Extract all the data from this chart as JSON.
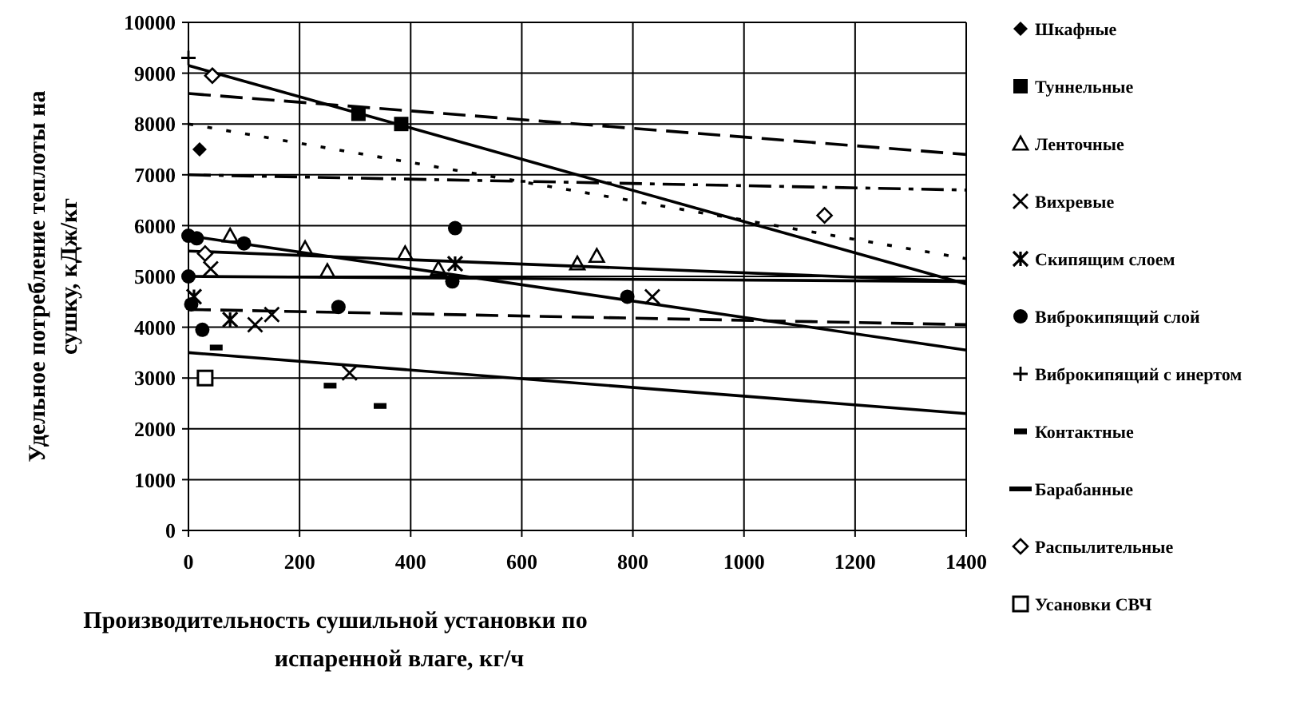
{
  "chart_data": {
    "type": "scatter",
    "xlabel": "Производительность сушильной установки по испаренной влаге, кг/ч",
    "ylabel": "Удельное потребление теплоты на сушку, кДж/кг",
    "xlim": [
      0,
      1400
    ],
    "xticks": [
      0,
      200,
      400,
      600,
      800,
      1000,
      1200,
      {
        "value": 1400,
        "label": "1400"
      }
    ],
    "ylim": [
      0,
      10000
    ],
    "yticks": [
      0,
      1000,
      2000,
      3000,
      4000,
      5000,
      6000,
      7000,
      8000,
      9000,
      10000
    ],
    "grid": true,
    "legend": "right",
    "series": [
      {
        "name": "Шкафные",
        "color": "#000000",
        "marker": "diamond",
        "x": [
          20
        ],
        "values": [
          7500
        ]
      },
      {
        "name": "Туннельные",
        "color": "#000000",
        "marker": "square",
        "x": [
          306,
          383
        ],
        "values": [
          8200,
          8000
        ]
      },
      {
        "name": "Ленточные",
        "color": "#000000",
        "marker": "triangle-open",
        "x": [
          75,
          210,
          250,
          390,
          450,
          700,
          735
        ],
        "values": [
          5800,
          5550,
          5100,
          5450,
          5150,
          5250,
          5400
        ]
      },
      {
        "name": "Вихревые",
        "color": "#000000",
        "marker": "cross",
        "x": [
          40,
          120,
          150,
          290,
          835
        ],
        "values": [
          5150,
          4050,
          4250,
          3100,
          4600
        ]
      },
      {
        "name": "Скипящим слоем",
        "color": "#000000",
        "x": [
          10,
          75,
          480
        ],
        "values": [
          4600,
          4150,
          5250
        ]
      },
      {
        "name": "Виброкипящий слой",
        "color": "#000000",
        "marker": "circle",
        "x": [
          0,
          15,
          100,
          480,
          475,
          790,
          0,
          5,
          25,
          270
        ],
        "values": [
          5800,
          5750,
          5650,
          5950,
          4900,
          4600,
          5000,
          4450,
          3950,
          4400
        ]
      },
      {
        "name": "Виброкипящий с инертом",
        "color": "#000000",
        "marker": "plus",
        "x": [
          0
        ],
        "values": [
          9300
        ]
      },
      {
        "name": "Контактные",
        "color": "#000000",
        "marker": "square",
        "x": [
          50,
          255,
          345
        ],
        "values": [
          3600,
          2850,
          2450
        ]
      },
      {
        "name": "Барабанные",
        "color": "#000000"
      },
      {
        "name": "Распылительные",
        "color": "#000000",
        "marker": "diamond-open",
        "x": [
          43,
          30,
          1145
        ],
        "values": [
          8950,
          5450,
          6200
        ]
      },
      {
        "name": "Усановки СВЧ",
        "color": "#000000",
        "marker": "square-open",
        "x": [
          30
        ],
        "values": [
          3000
        ]
      },
      {
        "type": "line",
        "color": "#000000",
        "line_style": "solid",
        "x": [
          0,
          1400
        ],
        "values": [
          9150,
          4850
        ]
      },
      {
        "type": "line",
        "color": "#000000",
        "line_style": "dashed",
        "x": [
          0,
          1400
        ],
        "values": [
          8600,
          7400
        ]
      },
      {
        "type": "line",
        "color": "#000000",
        "line_style": "dotted",
        "x": [
          0,
          1400
        ],
        "values": [
          8000,
          5350
        ]
      },
      {
        "type": "line",
        "color": "#000000",
        "line_style": "dashdot",
        "x": [
          0,
          1400
        ],
        "values": [
          7000,
          6700
        ]
      },
      {
        "type": "line",
        "color": "#000000",
        "line_style": "solid",
        "x": [
          0,
          1400
        ],
        "values": [
          5500,
          4900
        ]
      },
      {
        "type": "line",
        "color": "#000000",
        "line_style": "solid",
        "x": [
          0,
          1400
        ],
        "values": [
          5000,
          4900
        ]
      },
      {
        "type": "line",
        "color": "#000000",
        "line_style": "solid",
        "x": [
          0,
          1400
        ],
        "values": [
          5800,
          3550
        ]
      },
      {
        "type": "line",
        "color": "#000000",
        "line_style": "dashed",
        "x": [
          0,
          1400
        ],
        "values": [
          4350,
          4050
        ]
      },
      {
        "type": "line",
        "color": "#000000",
        "line_style": "solid",
        "x": [
          0,
          1400
        ],
        "values": [
          3500,
          2300
        ]
      }
    ]
  }
}
